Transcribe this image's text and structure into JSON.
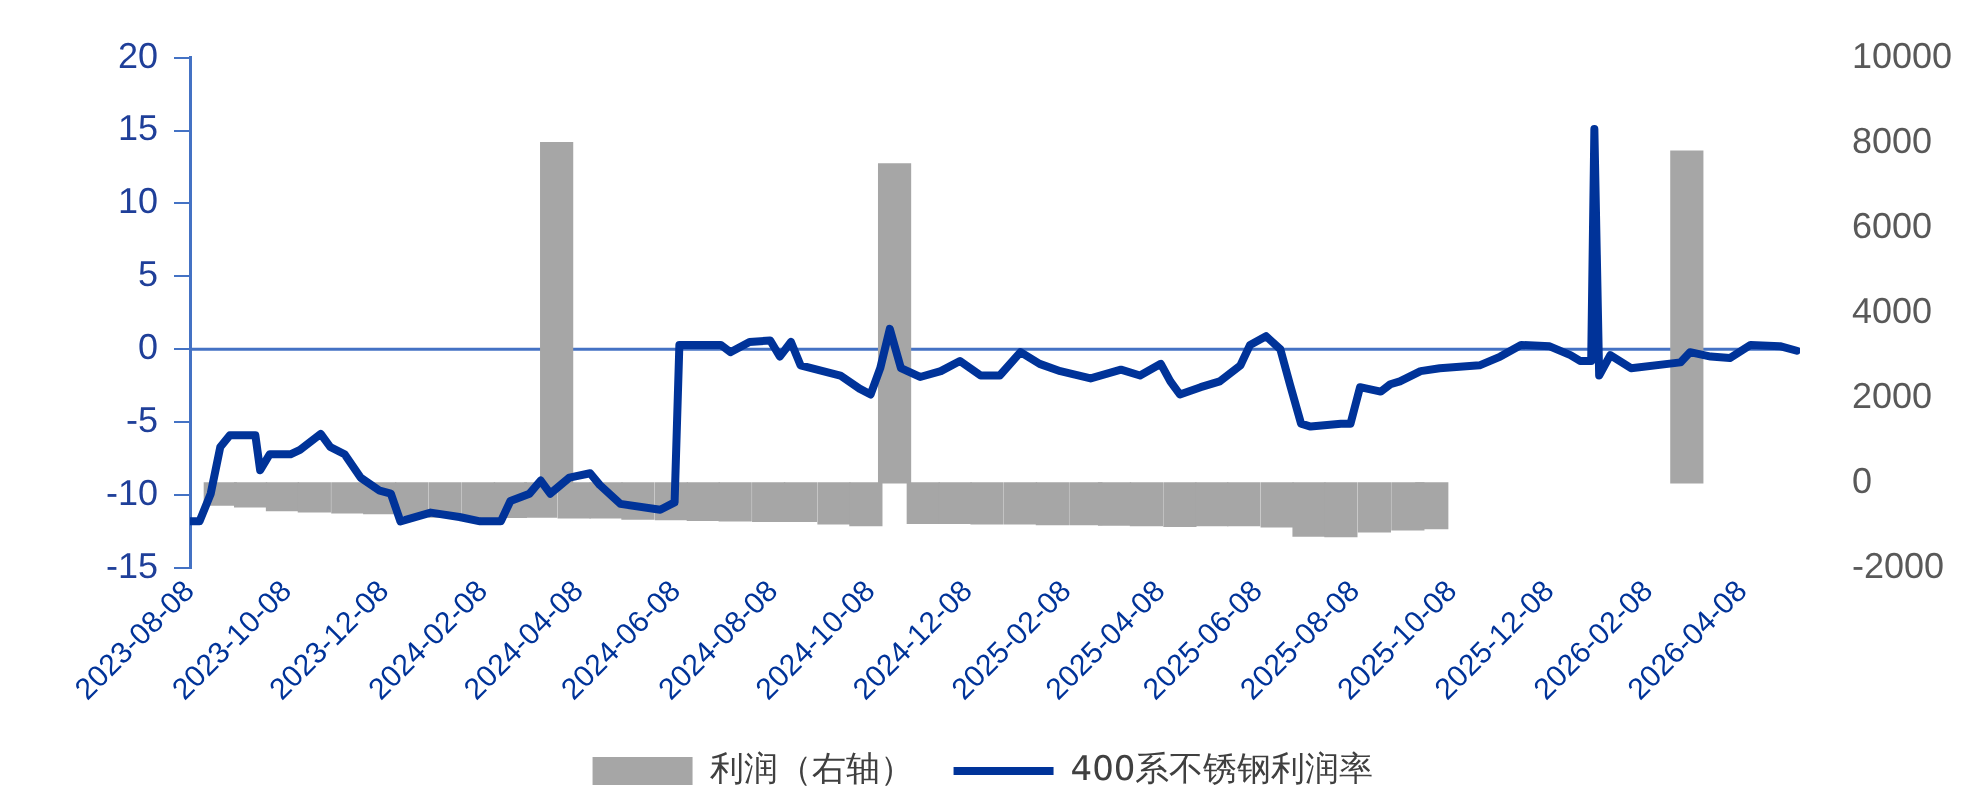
{
  "chart_data": {
    "type": "line",
    "xlim": [
      "2023-08-08",
      "2026-05-14"
    ],
    "xticks": [
      "2023-08-08",
      "2023-10-08",
      "2023-12-08",
      "2024-02-08",
      "2024-04-08",
      "2024-06-08",
      "2024-08-08",
      "2024-10-08",
      "2024-12-08",
      "2025-02-08",
      "2025-04-08",
      "2025-06-08",
      "2025-08-08",
      "2025-10-08",
      "2025-12-08",
      "2026-02-08",
      "2026-04-08"
    ],
    "ylim": [
      -15,
      20
    ],
    "yticks": [
      -15,
      -10,
      -5,
      0,
      5,
      10,
      15,
      20
    ],
    "y2lim": [
      -2000,
      10000
    ],
    "y2ticks": [
      -2000,
      0,
      2000,
      4000,
      6000,
      8000,
      10000
    ],
    "legend": "bottom",
    "grid": false,
    "ref_lines": [
      {
        "axis": "y",
        "value": 0,
        "color": "#4472c4"
      }
    ],
    "series": [
      {
        "type": "bar",
        "name": "利润（右轴）",
        "color": "#a6a6a6",
        "axis": "y2",
        "x": [
          "2023-08-27",
          "2023-09-15",
          "2023-10-05",
          "2023-10-25",
          "2023-11-15",
          "2023-12-05",
          "2023-12-25",
          "2024-01-15",
          "2024-02-05",
          "2024-02-25",
          "2024-03-15",
          "2024-03-25",
          "2024-04-05",
          "2024-04-25",
          "2024-05-15",
          "2024-06-05",
          "2024-06-25",
          "2024-07-15",
          "2024-08-05",
          "2024-08-25",
          "2024-09-15",
          "2024-10-05",
          "2024-10-23",
          "2024-11-10",
          "2024-11-30",
          "2024-12-20",
          "2025-01-10",
          "2025-01-30",
          "2025-02-20",
          "2025-03-10",
          "2025-03-30",
          "2025-04-20",
          "2025-05-10",
          "2025-05-30",
          "2025-06-20",
          "2025-07-10",
          "2025-07-30",
          "2025-08-20",
          "2025-09-10",
          "2025-09-25",
          "2026-03-04"
        ],
        "values": [
          -520,
          -560,
          -650,
          -680,
          -700,
          -720,
          -760,
          -800,
          -820,
          -810,
          -800,
          8000,
          -820,
          -820,
          -850,
          -860,
          -880,
          -890,
          -900,
          -900,
          -960,
          -1000,
          7500,
          -950,
          -950,
          -960,
          -960,
          -980,
          -980,
          -990,
          -1000,
          -1020,
          -1000,
          -1000,
          -1030,
          -1250,
          -1260,
          -1150,
          -1100,
          -1070,
          7800
        ]
      },
      {
        "name": "400系不锈钢利润率",
        "color": "#003399",
        "x": [
          "2023-08-08",
          "2023-08-14",
          "2023-08-21",
          "2023-08-27",
          "2023-09-02",
          "2023-09-18",
          "2023-09-21",
          "2023-09-27",
          "2023-10-10",
          "2023-10-16",
          "2023-10-29",
          "2023-11-04",
          "2023-11-13",
          "2023-11-23",
          "2023-12-05",
          "2023-12-12",
          "2023-12-18",
          "2024-01-06",
          "2024-01-24",
          "2024-02-06",
          "2024-02-19",
          "2024-02-25",
          "2024-03-08",
          "2024-03-15",
          "2024-03-21",
          "2024-04-02",
          "2024-04-15",
          "2024-04-21",
          "2024-05-04",
          "2024-05-29",
          "2024-06-07",
          "2024-06-10",
          "2024-07-06",
          "2024-07-12",
          "2024-07-24",
          "2024-08-06",
          "2024-08-12",
          "2024-08-19",
          "2024-08-25",
          "2024-09-19",
          "2024-10-01",
          "2024-10-08",
          "2024-10-14",
          "2024-10-20",
          "2024-10-27",
          "2024-11-08",
          "2024-11-21",
          "2024-12-03",
          "2024-12-16",
          "2024-12-28",
          "2025-01-10",
          "2025-01-22",
          "2025-02-04",
          "2025-02-23",
          "2025-03-14",
          "2025-03-26",
          "2025-04-08",
          "2025-04-14",
          "2025-04-20",
          "2025-05-03",
          "2025-05-15",
          "2025-05-28",
          "2025-06-03",
          "2025-06-13",
          "2025-06-22",
          "2025-06-28",
          "2025-07-05",
          "2025-07-11",
          "2025-07-30",
          "2025-08-05",
          "2025-08-11",
          "2025-08-24",
          "2025-08-30",
          "2025-09-05",
          "2025-09-18",
          "2025-09-30",
          "2025-10-25",
          "2025-11-07",
          "2025-11-20",
          "2025-12-08",
          "2025-12-21",
          "2025-12-27",
          "2026-01-03",
          "2026-01-05",
          "2026-01-08",
          "2026-01-15",
          "2026-01-28",
          "2026-02-28",
          "2026-03-06",
          "2026-03-19",
          "2026-03-31",
          "2026-04-13",
          "2026-05-02",
          "2026-05-12"
        ],
        "values": [
          -11.8,
          -11.8,
          -9.9,
          -6.7,
          -5.9,
          -5.9,
          -8.3,
          -7.2,
          -7.2,
          -6.9,
          -5.8,
          -6.7,
          -7.2,
          -8.8,
          -9.7,
          -9.9,
          -11.8,
          -11.2,
          -11.5,
          -11.8,
          -11.8,
          -10.4,
          -9.9,
          -9.0,
          -9.9,
          -8.8,
          -8.5,
          -9.3,
          -10.6,
          -11.0,
          -10.5,
          0.3,
          0.3,
          -0.2,
          0.5,
          0.6,
          -0.5,
          0.5,
          -1.1,
          -1.8,
          -2.7,
          -3.1,
          -1.3,
          1.4,
          -1.3,
          -1.9,
          -1.5,
          -0.8,
          -1.8,
          -1.8,
          -0.2,
          -1.0,
          -1.5,
          -2.0,
          -1.4,
          -1.8,
          -1.0,
          -2.2,
          -3.1,
          -2.6,
          -2.2,
          -1.1,
          0.3,
          0.9,
          0.0,
          -2.4,
          -5.1,
          -5.3,
          -5.1,
          -5.1,
          -2.6,
          -2.9,
          -2.4,
          -2.2,
          -1.5,
          -1.3,
          -1.1,
          -0.5,
          0.3,
          0.2,
          -0.4,
          -0.8,
          -0.8,
          15.1,
          -1.8,
          -0.4,
          -1.3,
          -0.9,
          -0.2,
          -0.5,
          -0.6,
          0.3,
          0.2,
          -0.1
        ]
      }
    ]
  }
}
